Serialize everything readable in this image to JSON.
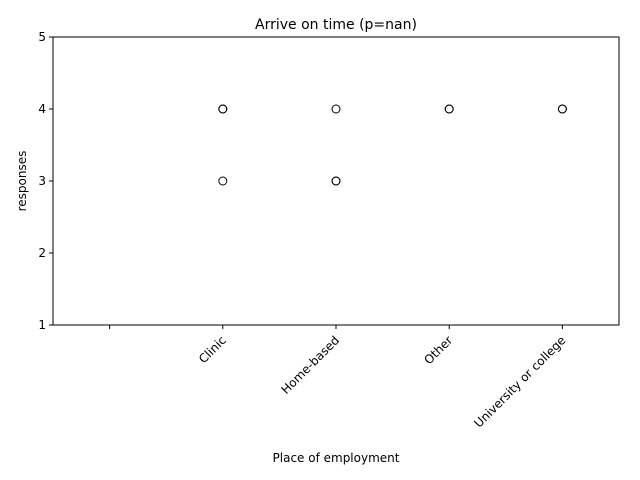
{
  "chart_data": {
    "type": "box",
    "title": "Arrive on time (p=nan)",
    "xlabel": "Place of employment",
    "ylabel": "responses",
    "categories": [
      "",
      "Clinic",
      "Home-based",
      "Other",
      "University or college"
    ],
    "ylim": [
      1,
      5
    ],
    "yticks": [
      1,
      2,
      3,
      4,
      5
    ],
    "grid": false,
    "median_lines": [
      null,
      5,
      5,
      5,
      5
    ],
    "outliers": [
      [],
      [
        4,
        4,
        3
      ],
      [
        4,
        3,
        3
      ],
      [
        4,
        4
      ],
      [
        4,
        4
      ]
    ],
    "colors": {
      "stroke": "#000000",
      "marker_face": "none"
    }
  }
}
